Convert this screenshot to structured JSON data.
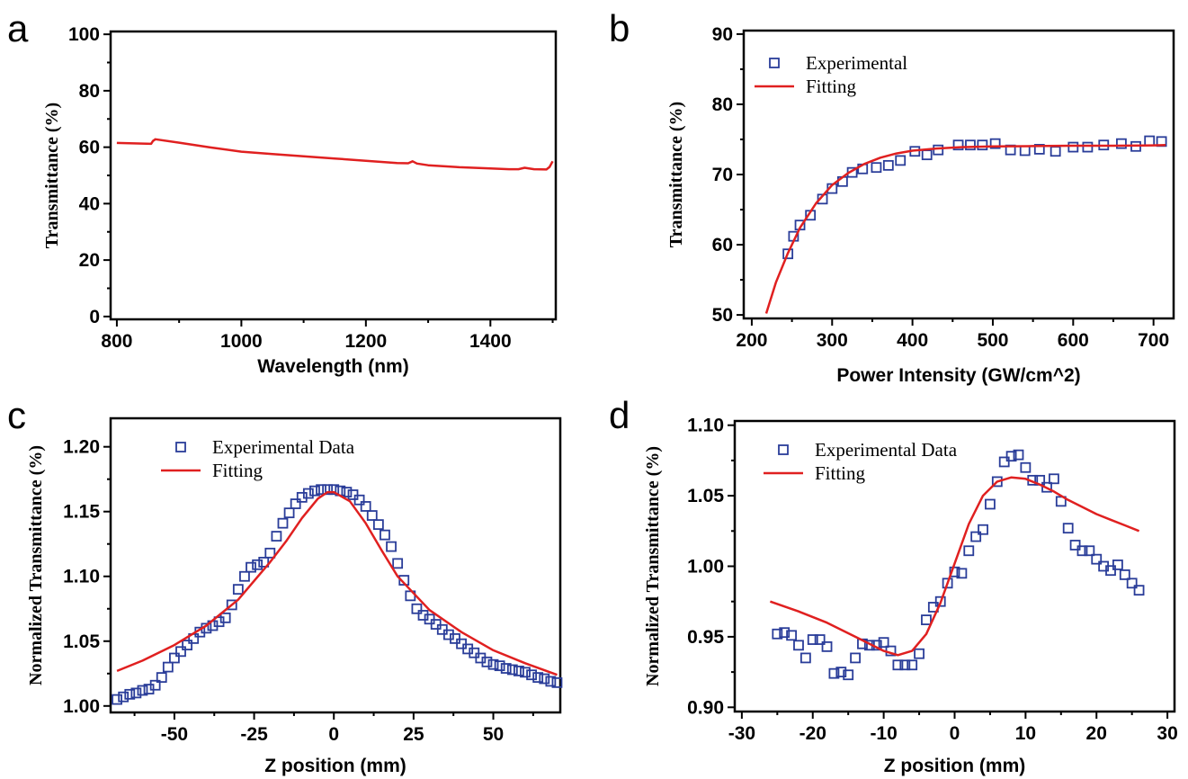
{
  "colors": {
    "line": "#e02020",
    "marker": "#2a3d99",
    "axis": "#000000"
  },
  "chart_data": [
    {
      "panel": "a",
      "type": "line",
      "xlabel": "Wavelength (nm)",
      "ylabel": "Transmittance (%)",
      "xlim": [
        790,
        1505
      ],
      "ylim": [
        -1,
        101
      ],
      "xticks": [
        800,
        1000,
        1200,
        1400
      ],
      "yticks": [
        0,
        20,
        40,
        60,
        80,
        100
      ],
      "grid": false,
      "series": [
        {
          "style": "line",
          "x": [
            800,
            855,
            858,
            862,
            900,
            950,
            1000,
            1050,
            1100,
            1150,
            1200,
            1250,
            1268,
            1275,
            1282,
            1300,
            1350,
            1400,
            1430,
            1445,
            1455,
            1470,
            1490,
            1495,
            1500
          ],
          "y": [
            61.5,
            61.2,
            62.2,
            62.8,
            61.6,
            59.9,
            58.4,
            57.6,
            56.8,
            56.0,
            55.2,
            54.4,
            54.3,
            55.0,
            54.2,
            53.6,
            52.9,
            52.5,
            52.2,
            52.2,
            52.7,
            52.2,
            52.1,
            53.0,
            55.0
          ]
        }
      ]
    },
    {
      "panel": "b",
      "type": "scatter",
      "xlabel": "Power Intensity (GW/cm^2)",
      "ylabel": "Transmittance (%)",
      "xlim": [
        190,
        725
      ],
      "ylim": [
        49.5,
        90.5
      ],
      "xticks": [
        200,
        300,
        400,
        500,
        600,
        700
      ],
      "yticks": [
        50,
        60,
        70,
        80,
        90
      ],
      "grid": false,
      "legend": "top-left",
      "series": [
        {
          "name": "Experimental",
          "style": "markers",
          "x": [
            245,
            252,
            260,
            273,
            288,
            300,
            313,
            325,
            338,
            355,
            370,
            385,
            403,
            418,
            432,
            457,
            472,
            487,
            503,
            522,
            540,
            558,
            578,
            600,
            618,
            638,
            660,
            678,
            695,
            710
          ],
          "y": [
            58.7,
            61.2,
            62.8,
            64.2,
            66.5,
            68.0,
            69.0,
            70.3,
            70.8,
            71.0,
            71.3,
            72.0,
            73.3,
            72.8,
            73.5,
            74.2,
            74.2,
            74.2,
            74.4,
            73.5,
            73.4,
            73.6,
            73.3,
            73.9,
            73.9,
            74.2,
            74.4,
            74.0,
            74.8,
            74.7
          ]
        },
        {
          "name": "Fitting",
          "style": "line",
          "x": [
            218,
            230,
            245,
            260,
            280,
            300,
            320,
            340,
            360,
            380,
            400,
            430,
            460,
            500,
            550,
            600,
            650,
            700,
            715
          ],
          "y": [
            50.2,
            54.6,
            58.8,
            62.4,
            65.9,
            68.5,
            70.2,
            71.5,
            72.4,
            73.0,
            73.4,
            73.7,
            73.9,
            74.0,
            74.05,
            74.1,
            74.1,
            74.15,
            74.2
          ]
        }
      ]
    },
    {
      "panel": "c",
      "type": "scatter",
      "xlabel": "Z position (mm)",
      "ylabel": "Normalized Transmittance (%)",
      "xlim": [
        -70,
        71
      ],
      "ylim": [
        0.995,
        1.222
      ],
      "xticks": [
        -50,
        -25,
        0,
        25,
        50
      ],
      "yticks": [
        1.0,
        1.05,
        1.1,
        1.15,
        1.2
      ],
      "grid": false,
      "legend": "top-left",
      "series": [
        {
          "name": "Experimental Data",
          "style": "markers",
          "x": [
            -68,
            -66,
            -64,
            -62,
            -60,
            -58,
            -56,
            -54,
            -52,
            -50,
            -48,
            -46,
            -44,
            -42,
            -40,
            -38,
            -36,
            -34,
            -32,
            -30,
            -28,
            -26,
            -24,
            -22,
            -20,
            -18,
            -16,
            -14,
            -12,
            -10,
            -8,
            -6,
            -4,
            -2,
            0,
            2,
            4,
            6,
            8,
            10,
            12,
            14,
            16,
            18,
            20,
            22,
            24,
            26,
            28,
            30,
            32,
            34,
            36,
            38,
            40,
            42,
            44,
            46,
            48,
            50,
            52,
            54,
            56,
            58,
            60,
            62,
            64,
            66,
            68,
            70
          ],
          "y": [
            1.005,
            1.007,
            1.009,
            1.01,
            1.012,
            1.013,
            1.016,
            1.022,
            1.03,
            1.037,
            1.042,
            1.047,
            1.052,
            1.057,
            1.06,
            1.062,
            1.065,
            1.068,
            1.078,
            1.09,
            1.1,
            1.107,
            1.109,
            1.111,
            1.118,
            1.131,
            1.141,
            1.149,
            1.156,
            1.161,
            1.164,
            1.166,
            1.167,
            1.167,
            1.167,
            1.166,
            1.165,
            1.163,
            1.159,
            1.154,
            1.147,
            1.14,
            1.132,
            1.123,
            1.11,
            1.097,
            1.085,
            1.075,
            1.07,
            1.067,
            1.063,
            1.059,
            1.055,
            1.052,
            1.048,
            1.044,
            1.041,
            1.037,
            1.034,
            1.032,
            1.031,
            1.029,
            1.028,
            1.027,
            1.026,
            1.024,
            1.022,
            1.021,
            1.019,
            1.018
          ]
        },
        {
          "name": "Fitting",
          "style": "line",
          "x": [
            -68,
            -60,
            -50,
            -40,
            -30,
            -20,
            -15,
            -10,
            -5,
            -2,
            0,
            5,
            10,
            15,
            20,
            30,
            40,
            50,
            60,
            70
          ],
          "y": [
            1.027,
            1.035,
            1.047,
            1.062,
            1.082,
            1.111,
            1.127,
            1.145,
            1.16,
            1.165,
            1.165,
            1.158,
            1.141,
            1.12,
            1.1,
            1.074,
            1.057,
            1.043,
            1.033,
            1.024
          ]
        }
      ]
    },
    {
      "panel": "d",
      "type": "scatter",
      "xlabel": "Z position (mm)",
      "ylabel": "Normalized Transmittance (%)",
      "xlim": [
        -31,
        31
      ],
      "ylim": [
        0.897,
        1.103
      ],
      "xticks": [
        -30,
        -20,
        -10,
        0,
        10,
        20,
        30
      ],
      "yticks": [
        0.9,
        0.95,
        1.0,
        1.05,
        1.1
      ],
      "grid": false,
      "legend": "top-left",
      "series": [
        {
          "name": "Experimental Data",
          "style": "markers",
          "x": [
            -25,
            -24,
            -23,
            -22,
            -21,
            -20,
            -19,
            -18,
            -17,
            -16,
            -15,
            -14,
            -13,
            -12,
            -11,
            -10,
            -9,
            -8,
            -7,
            -6,
            -5,
            -4,
            -3,
            -2,
            -1,
            0,
            1,
            2,
            3,
            4,
            5,
            6,
            7,
            8,
            9,
            10,
            11,
            12,
            13,
            14,
            15,
            16,
            17,
            18,
            19,
            20,
            21,
            22,
            23,
            24,
            25,
            26
          ],
          "y": [
            0.952,
            0.953,
            0.951,
            0.944,
            0.935,
            0.948,
            0.948,
            0.943,
            0.924,
            0.925,
            0.923,
            0.935,
            0.945,
            0.944,
            0.944,
            0.946,
            0.94,
            0.93,
            0.93,
            0.93,
            0.938,
            0.962,
            0.971,
            0.975,
            0.988,
            0.996,
            0.995,
            1.011,
            1.021,
            1.026,
            1.044,
            1.06,
            1.074,
            1.078,
            1.079,
            1.07,
            1.061,
            1.061,
            1.056,
            1.062,
            1.046,
            1.027,
            1.015,
            1.011,
            1.011,
            1.005,
            1.0,
            0.997,
            1.001,
            0.994,
            0.988,
            0.983
          ]
        },
        {
          "name": "Fitting",
          "style": "line",
          "x": [
            -26,
            -22,
            -18,
            -14,
            -12,
            -10,
            -8,
            -6,
            -4,
            -2,
            0,
            2,
            4,
            6,
            8,
            10,
            12,
            14,
            16,
            18,
            20,
            22,
            24,
            26
          ],
          "y": [
            0.975,
            0.968,
            0.96,
            0.95,
            0.945,
            0.94,
            0.937,
            0.94,
            0.952,
            0.974,
            1.002,
            1.03,
            1.05,
            1.06,
            1.063,
            1.062,
            1.058,
            1.053,
            1.047,
            1.042,
            1.037,
            1.033,
            1.029,
            1.025
          ]
        }
      ]
    }
  ]
}
